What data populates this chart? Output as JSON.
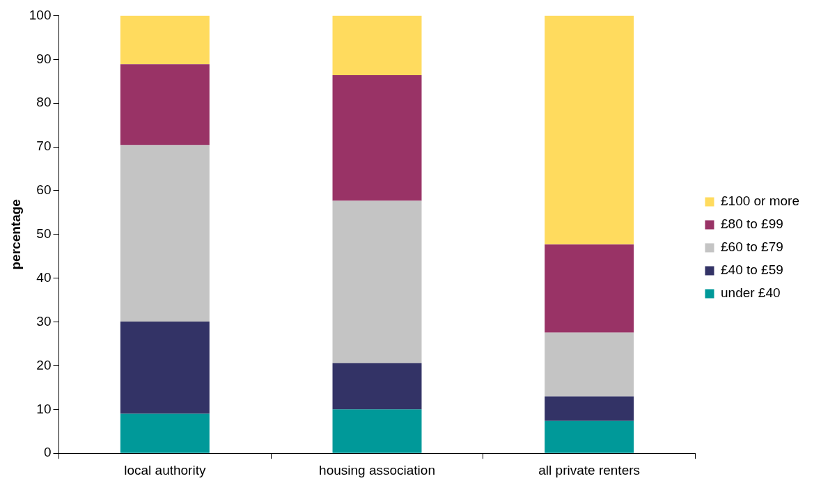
{
  "chart_data": {
    "type": "bar",
    "stacked": true,
    "ylabel": "percentage",
    "categories": [
      "local authority",
      "housing association",
      "all private renters"
    ],
    "series": [
      {
        "name": "under £40",
        "color": "#009999",
        "values": [
          9.0,
          10.0,
          7.4
        ]
      },
      {
        "name": "£40 to £59",
        "color": "#333366",
        "values": [
          21.1,
          10.6,
          5.6
        ]
      },
      {
        "name": "£60 to £79",
        "color": "#c4c4c4",
        "values": [
          40.3,
          37.1,
          14.6
        ]
      },
      {
        "name": "£80 to £99",
        "color": "#993366",
        "values": [
          18.5,
          28.7,
          20.1
        ]
      },
      {
        "name": "£100 or more",
        "color": "#ffdb5e",
        "values": [
          11.1,
          13.6,
          52.3
        ]
      }
    ],
    "ylim": [
      0,
      100
    ],
    "yticks": [
      0,
      10,
      20,
      30,
      40,
      50,
      60,
      70,
      80,
      90,
      100
    ],
    "grid": false,
    "legend": "right"
  }
}
